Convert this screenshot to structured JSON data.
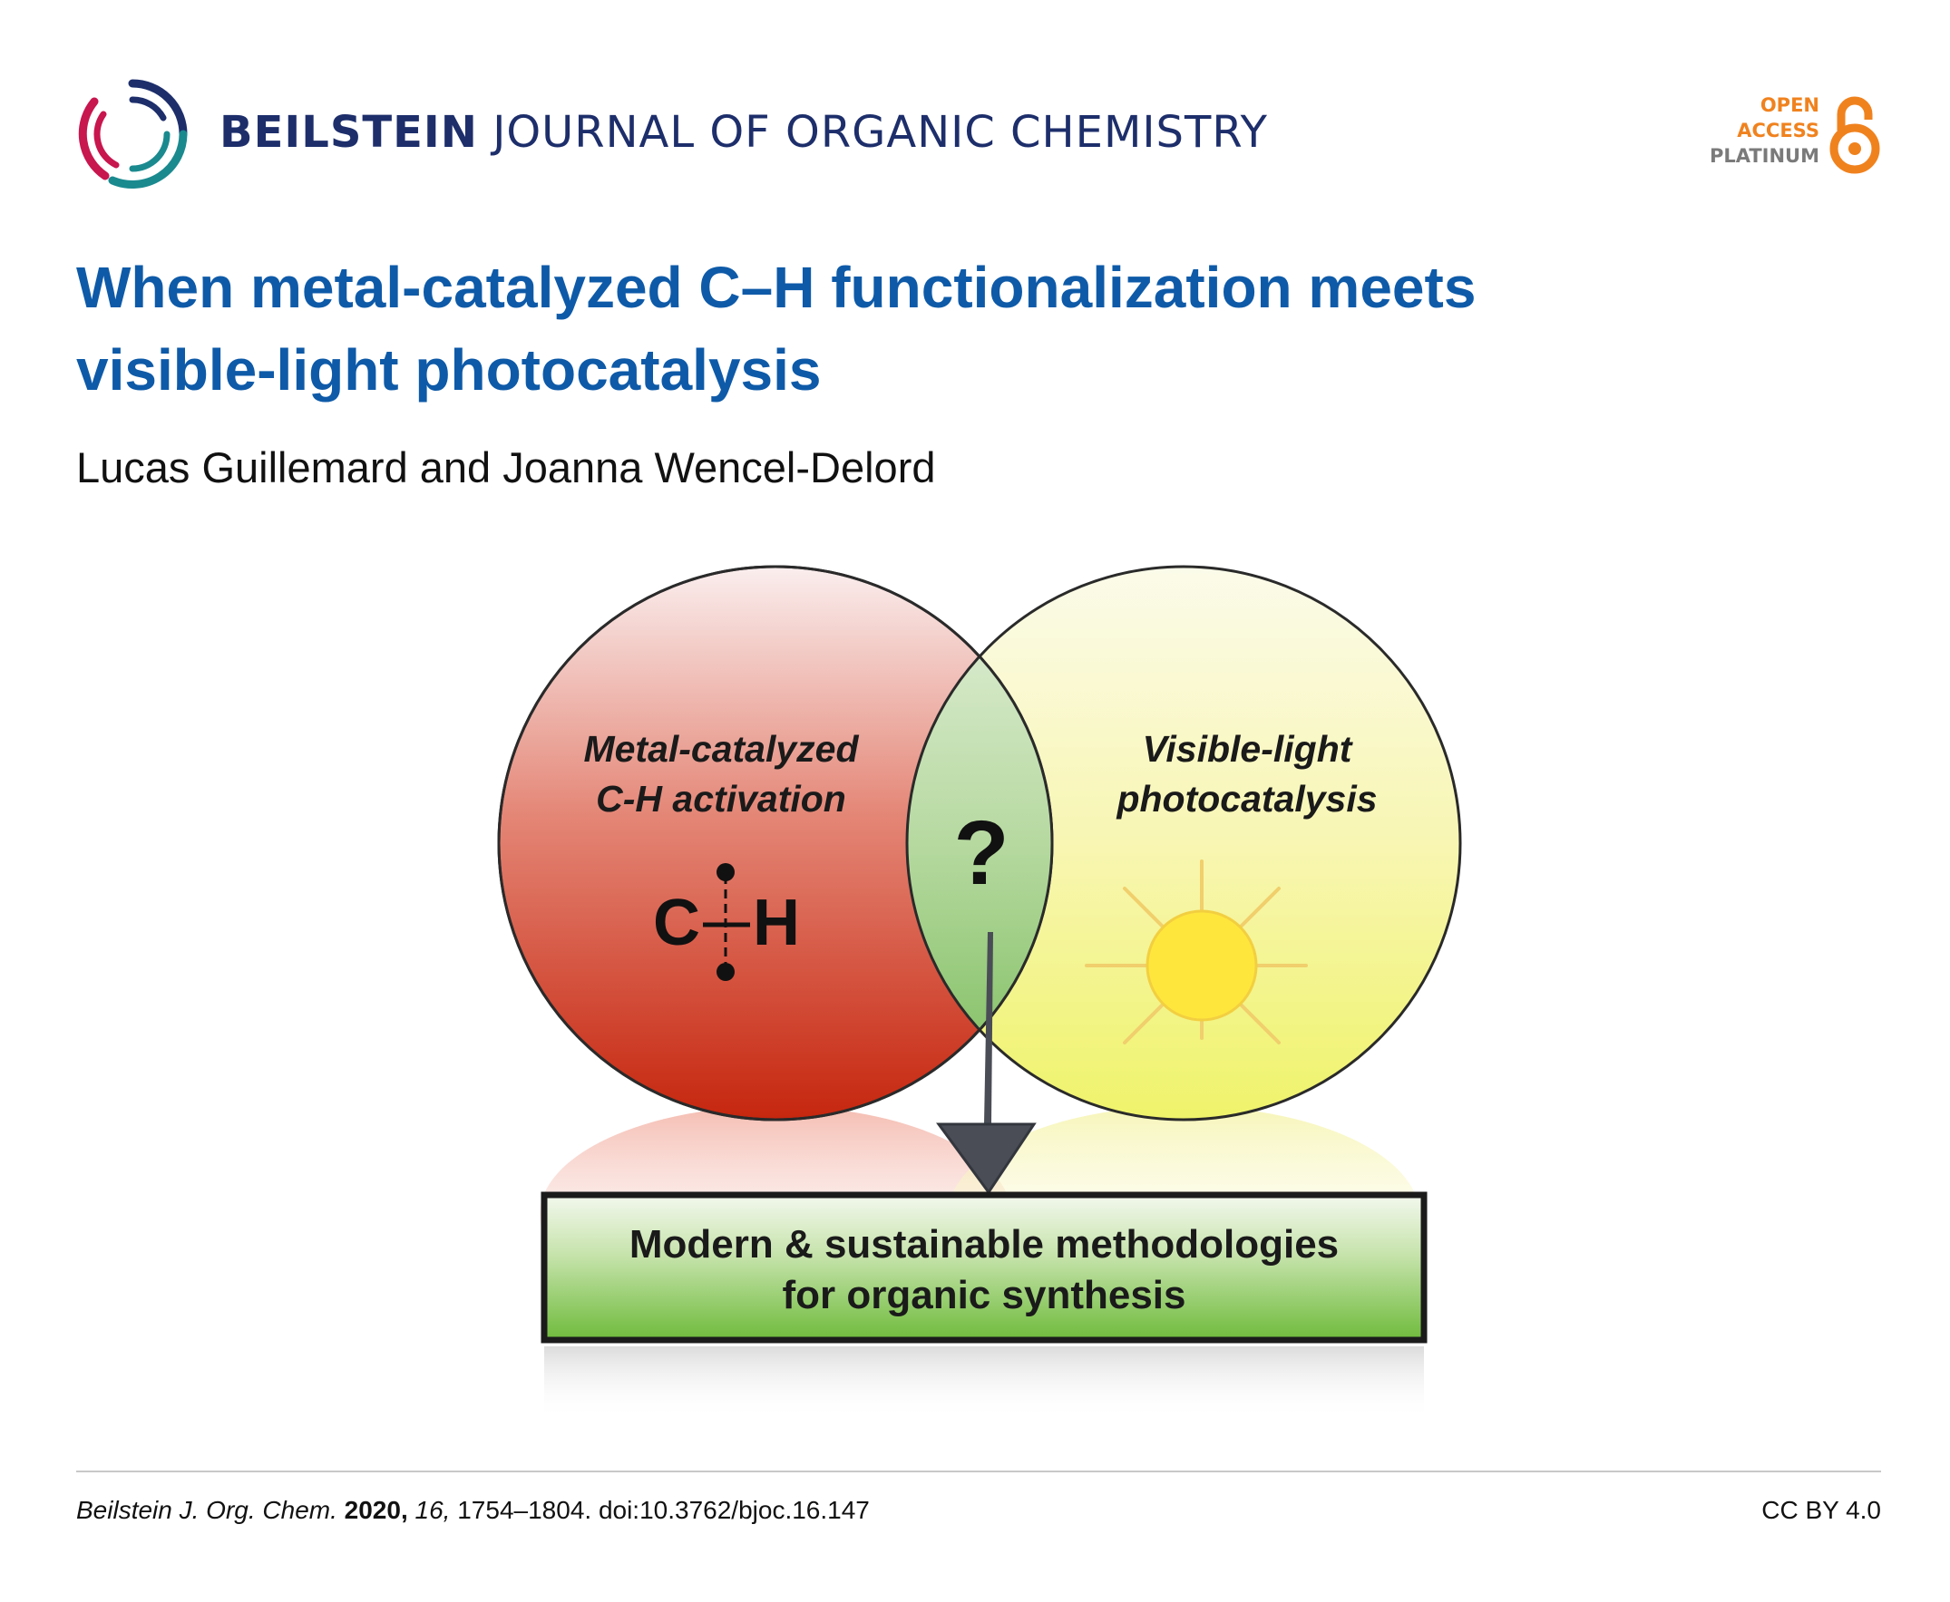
{
  "header": {
    "journal_brand": "BEILSTEIN",
    "journal_rest": "JOURNAL OF ORGANIC CHEMISTRY",
    "open_access": {
      "line1": "OPEN",
      "line2": "ACCESS",
      "line3": "PLATINUM",
      "icon": "open-lock-icon",
      "color": "#f0821e"
    }
  },
  "article": {
    "title_line1": "When metal-catalyzed C–H functionalization meets",
    "title_line2": "visible-light photocatalysis",
    "authors": "Lucas Guillemard and Joanna Wencel-Delord"
  },
  "figure": {
    "left_circle_line1": "Metal-catalyzed",
    "left_circle_line2": "C-H activation",
    "right_circle_line1": "Visible-light",
    "right_circle_line2": "photocatalysis",
    "overlap_symbol": "?",
    "bond_left_atom": "C",
    "bond_right_atom": "H",
    "box_line1": "Modern & sustainable methodologies",
    "box_line2": "for organic synthesis",
    "colors": {
      "left_circle": "#d23a22",
      "right_circle": "#f2f27a",
      "overlap": "#9cca84",
      "box": "#7fc44c",
      "sun": "#ffe640"
    }
  },
  "footer": {
    "journal_abbrev": "Beilstein J. Org. Chem.",
    "year": "2020,",
    "volume": "16,",
    "pages_doi": "1754–1804. doi:10.3762/bjoc.16.147",
    "license": "CC BY 4.0"
  }
}
